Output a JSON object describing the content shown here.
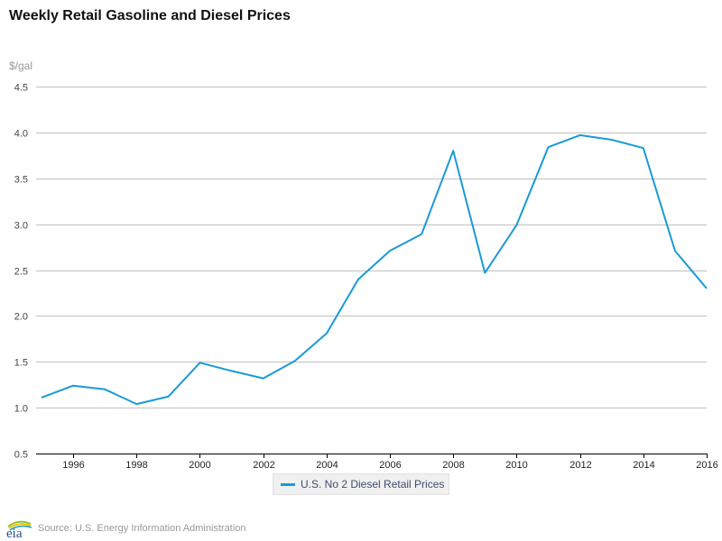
{
  "chart_data": {
    "type": "line",
    "title": "Weekly Retail Gasoline and Diesel Prices",
    "ylabel": "$/gal",
    "xlabel": "",
    "ylim": [
      0.5,
      4.5
    ],
    "xlim": [
      1995,
      2016
    ],
    "yticks": [
      "0.5",
      "1.0",
      "1.5",
      "2.0",
      "2.5",
      "3.0",
      "3.5",
      "4.0",
      "4.5"
    ],
    "ytick_values": [
      0.5,
      1.0,
      1.5,
      2.0,
      2.5,
      3.0,
      3.5,
      4.0,
      4.5
    ],
    "xticks": [
      "1996",
      "1998",
      "2000",
      "2002",
      "2004",
      "2006",
      "2008",
      "2010",
      "2012",
      "2014",
      "2016"
    ],
    "xtick_values": [
      1996,
      1998,
      2000,
      2002,
      2004,
      2006,
      2008,
      2010,
      2012,
      2014,
      2016
    ],
    "grid": true,
    "legend_position": "bottom-center",
    "x": [
      1995,
      1996,
      1997,
      1998,
      1999,
      2000,
      2001,
      2002,
      2003,
      2004,
      2005,
      2006,
      2007,
      2008,
      2009,
      2010,
      2011,
      2012,
      2013,
      2014,
      2015,
      2016
    ],
    "series": [
      {
        "name": "U.S. No 2 Diesel Retail Prices",
        "color": "#1a9ad6",
        "values": [
          1.11,
          1.24,
          1.2,
          1.04,
          1.12,
          1.49,
          1.4,
          1.32,
          1.51,
          1.81,
          2.4,
          2.71,
          2.89,
          3.8,
          2.47,
          2.99,
          3.84,
          3.97,
          3.92,
          3.83,
          2.71,
          2.3
        ]
      }
    ]
  },
  "source": "Source: U.S. Energy Information Administration",
  "logo_text": "eia",
  "colors": {
    "line": "#1a9ad6",
    "grid": "#c0c0c0",
    "axis": "#000000",
    "logo_arc_green": "#8cc63f",
    "logo_arc_yellow": "#f5c400",
    "logo_arc_blue": "#1a9ad6",
    "logo_text": "#1d4e89"
  }
}
